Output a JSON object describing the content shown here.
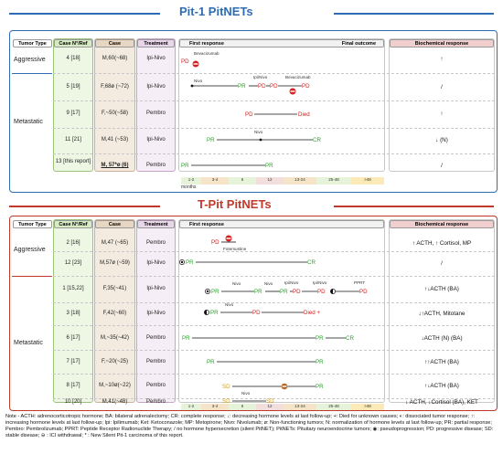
{
  "pit1": {
    "title": "Pit-1 PitNETs",
    "headers": {
      "tumor_type": "Tumor Type",
      "case_ref": "Case N°/Ref",
      "case": "Case",
      "treatment": "Treatment",
      "first_response": "First response",
      "final_outcome": "Final outcome",
      "biochemical": "Biochemical response"
    },
    "groups": [
      "Aggressive",
      "Metastatic"
    ],
    "rows": [
      {
        "ref": "4 [18]",
        "case": "M,60(~68)",
        "treatment": "Ipi-Nivo",
        "bio": "↑"
      },
      {
        "ref": "5 [19]",
        "case": "F,68ø (~72)",
        "treatment": "Ipi-Nivo",
        "bio": "/"
      },
      {
        "ref": "9 [17]",
        "case": "F,~50(~58)",
        "treatment": "Pembro",
        "bio": "↑"
      },
      {
        "ref": "11 [21]",
        "case": "M,41 (~53)",
        "treatment": "Ipi-Nivo",
        "bio": "↓ (N)"
      },
      {
        "ref": "13 [this report]",
        "case": "M, 57*ø (6)",
        "treatment": "Pembro",
        "bio": "/"
      }
    ],
    "events": {
      "r1": [
        "Bevacizumab",
        "PD"
      ],
      "r2": [
        "Nivo",
        "PR",
        "Ipi/Nivo",
        "PD",
        "PD",
        "Bevacizumab",
        "PD"
      ],
      "r3": [
        "PD",
        "Died"
      ],
      "r4": [
        "PR",
        "Nivo",
        "CR"
      ],
      "r5": [
        "PR",
        "PR"
      ]
    }
  },
  "tpit": {
    "title": "T-Pit PitNETs",
    "groups": [
      "Aggressive",
      "Metastatic"
    ],
    "rows": [
      {
        "ref": "2 [16]",
        "case": "M,47 (~65)",
        "treatment": "Pembro",
        "bio": "↑ ACTH, ↑ Cortisol, MP"
      },
      {
        "ref": "12 [23]",
        "case": "M,57ø (~59)",
        "treatment": "Ipi-Nivo",
        "bio": "/"
      },
      {
        "ref": "1 [15,22]",
        "case": "F,35(~41)",
        "treatment": "Ipi-Nivo",
        "bio": "↑↓ACTH (BA)"
      },
      {
        "ref": "3 [18]",
        "case": "F,42(~60)",
        "treatment": "Ipi-Nivo",
        "bio": "↓↑ACTH, Mitotane"
      },
      {
        "ref": "6 [17]",
        "case": "M,~35(~42)",
        "treatment": "Pembro",
        "bio": "↓ACTH (N) (BA)"
      },
      {
        "ref": "7 [17]",
        "case": "F,~20(~25)",
        "treatment": "Pembro",
        "bio": "↑↑ACTH (BA)"
      },
      {
        "ref": "8 [17]",
        "case": "M,~10ø(~22)",
        "treatment": "Pembro",
        "bio": "↑↓ACTH (BA)"
      },
      {
        "ref": "10 [20]",
        "case": "M,41(~48)",
        "treatment": "Pembro",
        "bio": "↓ ACTH, ↓Cortisol (BA), KET"
      }
    ],
    "events": {
      "r1": [
        "PD",
        "Fotemustine"
      ],
      "r2": [
        "PR",
        "CR"
      ],
      "r3": [
        "PR",
        "Nivo",
        "PR",
        "Nivo",
        "PR",
        "Ipi/Nivo",
        "PD",
        "Ipi/Nivo",
        "PD",
        "PPRT",
        "PD"
      ],
      "r4": [
        "PR",
        "Nivo",
        "PD",
        "Died +"
      ],
      "r5": [
        "PR",
        "PR",
        "CR"
      ],
      "r6": [
        "PR",
        "PR"
      ],
      "r7": [
        "SD",
        "PR"
      ],
      "r8": [
        "SD",
        "Nivo",
        "SD"
      ]
    }
  },
  "timeline": {
    "ticks": [
      "1-2",
      "3-4",
      "6",
      "12",
      "13-24",
      "25-48",
      ">48"
    ],
    "unit": "months"
  },
  "note": "Note - ACTH: adrenocorticotropic hormone; BA: bilateral adrenalectomy; CR: complete response; ↓: decreasing hormone levels at last follow-up; +: Died for unknown causes; ◐: dissociated tumor response; ↑: increasing hormone levels at last follow-up; Ipi: Ipilimumab; Ket: Ketoconazole; MP: Metopirone; Nivo: Nivolumab; ø: Non-functioning tumors; N: normalization of hormone levels at last follow-up; PR: partial response; Pembro: Pembrolizumab; PPRT: Peptide Receptor Radionuclide Therapy; / no hormone hypersecretion (silent PitNET); PitNETs: Pituitary neuroendocrine tumors; ◉: pseudoprogression; PD: progressive disease; SD: stable disease; ⊖ : ICI withdrawal; * : New Silent Pit-1 carcinoma of this report.",
  "colors": {
    "pit1": "#2e6db4",
    "tpit": "#c0392b",
    "pr": "#27a327",
    "pd": "#d42020",
    "sd": "#d4a017",
    "cr": "#27a327"
  }
}
